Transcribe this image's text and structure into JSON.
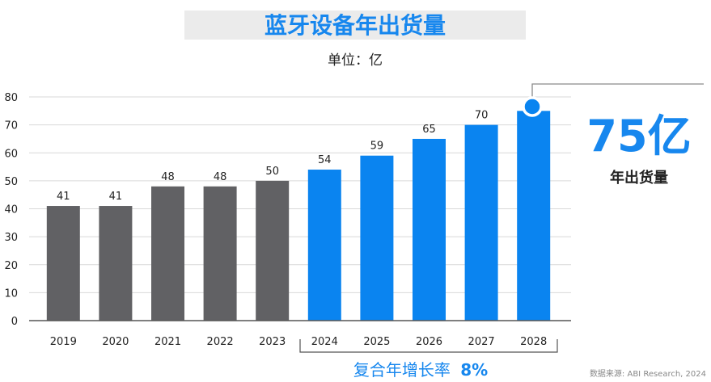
{
  "colors": {
    "historical_bar": "#616164",
    "forecast_bar": "#0a84f0",
    "accent_text": "#1787ee",
    "title_band": "#ebebeb",
    "axis": "#555555",
    "grid": "#d9d9d9",
    "text": "#222222"
  },
  "chart_data": {
    "type": "bar",
    "title": "蓝牙设备年出货量",
    "subtitle": "单位：亿",
    "categories": [
      "2019",
      "2020",
      "2021",
      "2022",
      "2023",
      "2024",
      "2025",
      "2026",
      "2027",
      "2028"
    ],
    "values": [
      41,
      41,
      48,
      48,
      50,
      54,
      59,
      65,
      70,
      75
    ],
    "data_labels": [
      "41",
      "41",
      "48",
      "48",
      "50",
      "54",
      "59",
      "65",
      "70",
      ""
    ],
    "forecast_from": "2024",
    "ylim": [
      0,
      80
    ],
    "yticks": [
      "0",
      "10",
      "20",
      "30",
      "40",
      "50",
      "60",
      "70",
      "80"
    ],
    "xlabel": "",
    "ylabel": "",
    "grid": true,
    "callout": {
      "value": "75亿",
      "label": "年出货量"
    },
    "cagr": {
      "prefix": "复合年增长率",
      "value": "8%"
    },
    "source": "数据来源: ABI Research, 2024"
  }
}
